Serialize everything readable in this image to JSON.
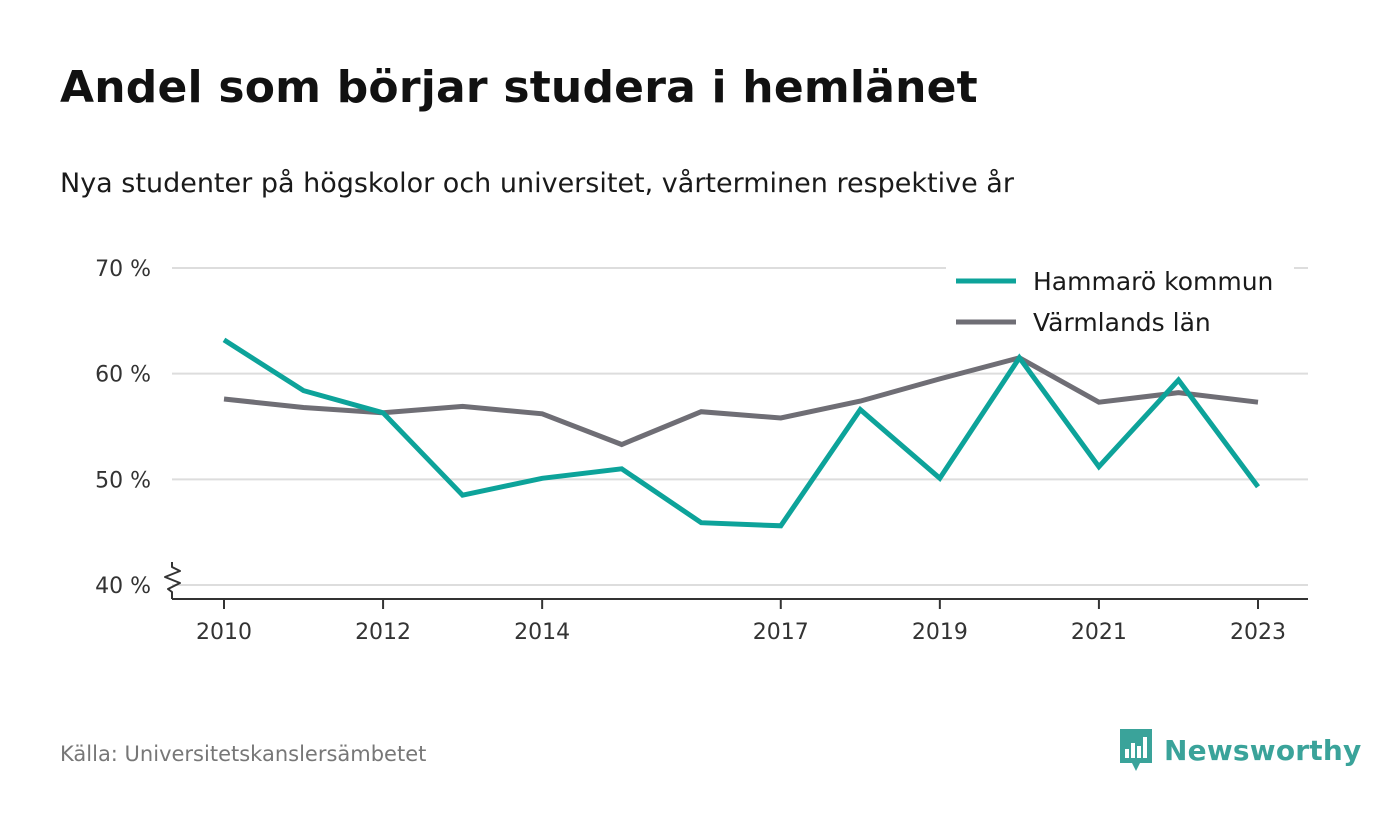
{
  "title": "Andel som börjar studera i hemlänet",
  "subtitle": "Nya studenter på högskolor och universitet, vårterminen respektive år",
  "source": "Källa: Universitetskanslersämbetet",
  "brand": {
    "name": "Newsworthy",
    "color": "#3aa39a",
    "icon": "bar-chart-speech-bubble-icon"
  },
  "chart_data": {
    "type": "line",
    "x": [
      2010,
      2011,
      2012,
      2013,
      2014,
      2015,
      2016,
      2017,
      2018,
      2019,
      2020,
      2021,
      2022,
      2023
    ],
    "x_ticks": [
      2010,
      2012,
      2014,
      2017,
      2019,
      2021,
      2023
    ],
    "y_ticks": [
      40,
      50,
      60,
      70
    ],
    "y_tick_labels": [
      "40 %",
      "50 %",
      "60 %",
      "70 %"
    ],
    "ylim": [
      40,
      70
    ],
    "y_axis_break": true,
    "grid": "horizontal",
    "legend_position": "top-right",
    "series": [
      {
        "name": "Hammarö kommun",
        "color": "#0da39a",
        "values": [
          63.2,
          58.4,
          56.3,
          48.5,
          50.1,
          51.0,
          45.9,
          45.6,
          56.6,
          50.1,
          61.5,
          51.2,
          59.4,
          49.3
        ]
      },
      {
        "name": "Värmlands län",
        "color": "#6f6e75",
        "values": [
          57.6,
          56.8,
          56.3,
          56.9,
          56.2,
          53.3,
          56.4,
          55.8,
          57.4,
          59.5,
          61.5,
          57.3,
          58.2,
          57.3
        ]
      }
    ]
  }
}
